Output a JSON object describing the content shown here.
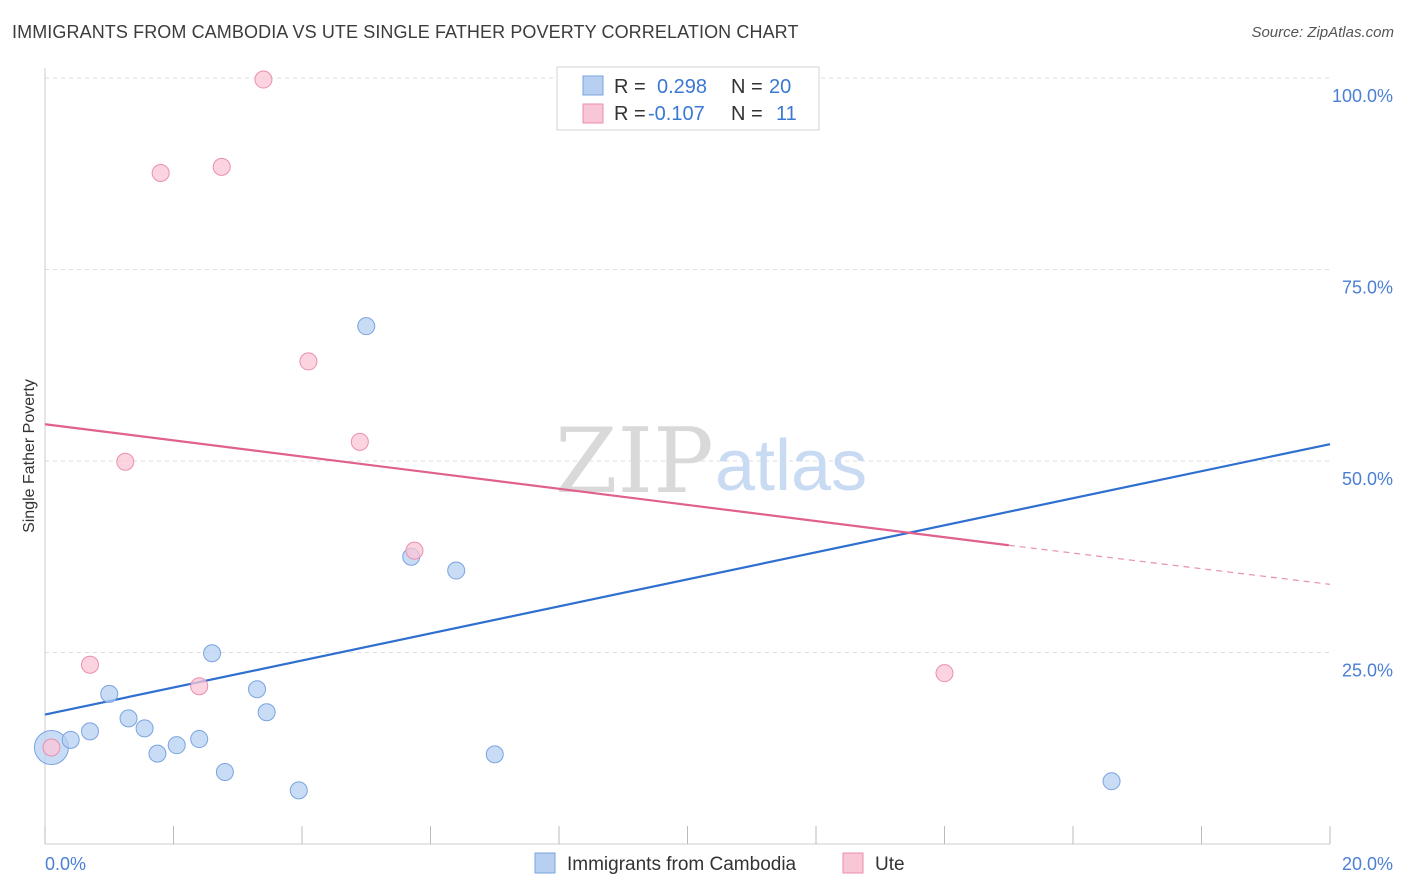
{
  "title": "IMMIGRANTS FROM CAMBODIA VS UTE SINGLE FATHER POVERTY CORRELATION CHART",
  "source": "Source: ZipAtlas.com",
  "watermark": {
    "zip": "ZIP",
    "atlas": "atlas"
  },
  "legend": {
    "r_label": "R =",
    "n_label": "N =",
    "rows": [
      {
        "r": "0.298",
        "n": "20"
      },
      {
        "r": "-0.107",
        "n": "11"
      }
    ]
  },
  "colors": {
    "cambodia_fill": "#b7d0f2",
    "cambodia_stroke": "#7aa3e0",
    "cambodia_line": "#2f6fd0",
    "ute_fill": "#f9c6d6",
    "ute_stroke": "#ea8fb0",
    "ute_line": "#e0608e"
  },
  "chart_data": {
    "type": "scatter",
    "ylabel": "Single Father Poverty",
    "xlim": [
      0,
      20
    ],
    "ylim": [
      0,
      100
    ],
    "x_ticks": [
      "0.0%",
      "20.0%"
    ],
    "y_ticks": [
      {
        "value": 25,
        "label": "25.0%"
      },
      {
        "value": 50,
        "label": "50.0%"
      },
      {
        "value": 75,
        "label": "75.0%"
      },
      {
        "value": 100,
        "label": "100.0%"
      }
    ],
    "grid": true,
    "legend_position": "top-center",
    "series": [
      {
        "name": "Immigrants from Cambodia",
        "points": [
          {
            "x": 0.1,
            "y": 12.6,
            "size": "large"
          },
          {
            "x": 0.4,
            "y": 13.6
          },
          {
            "x": 0.7,
            "y": 14.7
          },
          {
            "x": 1.0,
            "y": 19.6
          },
          {
            "x": 1.3,
            "y": 16.4
          },
          {
            "x": 1.55,
            "y": 15.1
          },
          {
            "x": 1.75,
            "y": 11.8
          },
          {
            "x": 2.05,
            "y": 12.9
          },
          {
            "x": 2.4,
            "y": 13.7
          },
          {
            "x": 2.6,
            "y": 24.9
          },
          {
            "x": 2.8,
            "y": 9.4
          },
          {
            "x": 3.3,
            "y": 20.2
          },
          {
            "x": 3.45,
            "y": 17.2
          },
          {
            "x": 3.95,
            "y": 7.0
          },
          {
            "x": 5.0,
            "y": 67.6
          },
          {
            "x": 5.7,
            "y": 37.5
          },
          {
            "x": 6.4,
            "y": 35.7
          },
          {
            "x": 7.0,
            "y": 11.7
          },
          {
            "x": 9.1,
            "y": 100.0
          },
          {
            "x": 16.6,
            "y": 8.2
          }
        ],
        "trend": {
          "x0": 0,
          "y0": 16.9,
          "x1": 20,
          "y1": 52.2
        }
      },
      {
        "name": "Ute",
        "points": [
          {
            "x": 0.1,
            "y": 12.6
          },
          {
            "x": 0.7,
            "y": 23.4
          },
          {
            "x": 1.25,
            "y": 49.9
          },
          {
            "x": 1.8,
            "y": 87.6
          },
          {
            "x": 2.4,
            "y": 20.6
          },
          {
            "x": 2.75,
            "y": 88.4
          },
          {
            "x": 3.4,
            "y": 99.8
          },
          {
            "x": 4.1,
            "y": 63.0
          },
          {
            "x": 4.9,
            "y": 52.5
          },
          {
            "x": 5.75,
            "y": 38.3
          },
          {
            "x": 14.0,
            "y": 22.3
          }
        ],
        "trend": {
          "x0": 0,
          "y0": 54.8,
          "x1": 15,
          "y1": 39.0,
          "x_dash_end": 20,
          "y_dash_end": 33.9
        }
      }
    ]
  }
}
